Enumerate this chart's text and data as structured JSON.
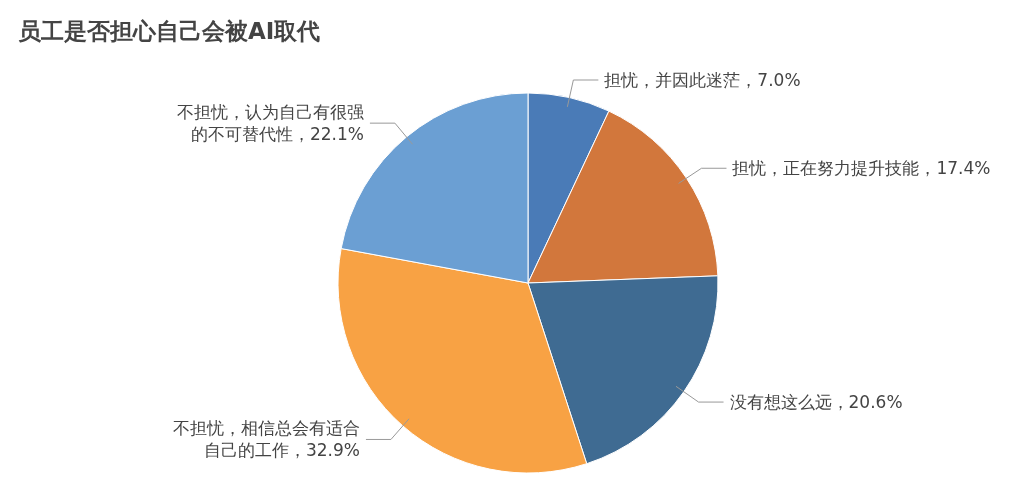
{
  "chart_data": {
    "type": "pie",
    "title": "员工是否担心自己会被AI取代",
    "categories": [
      "担忧，并因此迷茫",
      "担忧，正在努力提升技能",
      "没有想这么远",
      "不担忧，相信总会有适合自己的工作",
      "不担忧，认为自己有很强的不可替代性"
    ],
    "values": [
      7.0,
      17.4,
      20.6,
      32.9,
      22.1
    ],
    "value_labels": [
      "7.0%",
      "17.4%",
      "20.6%",
      "32.9%",
      "22.1%"
    ],
    "colors": [
      "#4a7bb7",
      "#d2773c",
      "#3f6b92",
      "#f8a244",
      "#6b9fd3"
    ],
    "legend": false
  }
}
